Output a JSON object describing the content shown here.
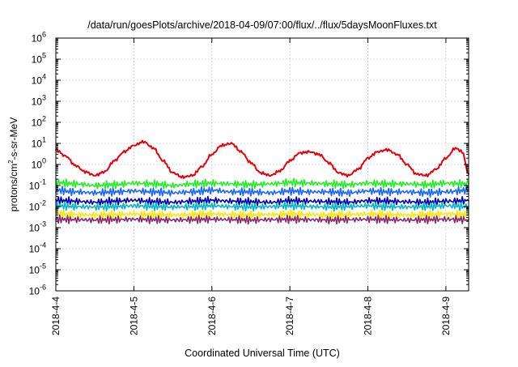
{
  "chart_data": {
    "type": "line",
    "title": "/data/run/goesPlots/archive/2018-04-09/07:00/flux/../flux/5daysMoonFluxes.txt",
    "xlabel": "Coordinated Universal Time (UTC)",
    "ylabel_parts": [
      "protons/cm",
      "2",
      "-s-sr-MeV"
    ],
    "y_scale": "log",
    "ylim": [
      1e-06,
      1000000.0
    ],
    "y_ticks": [
      {
        "base": "10",
        "exp": "-6",
        "value": 1e-06
      },
      {
        "base": "10",
        "exp": "-5",
        "value": 1e-05
      },
      {
        "base": "10",
        "exp": "-4",
        "value": 0.0001
      },
      {
        "base": "10",
        "exp": "-3",
        "value": 0.001
      },
      {
        "base": "10",
        "exp": "-2",
        "value": 0.01
      },
      {
        "base": "10",
        "exp": "-1",
        "value": 0.1
      },
      {
        "base": "10",
        "exp": "0",
        "value": 1
      },
      {
        "base": "10",
        "exp": "1",
        "value": 10
      },
      {
        "base": "10",
        "exp": "2",
        "value": 100
      },
      {
        "base": "10",
        "exp": "3",
        "value": 1000
      },
      {
        "base": "10",
        "exp": "4",
        "value": 10000
      },
      {
        "base": "10",
        "exp": "5",
        "value": 100000
      },
      {
        "base": "10",
        "exp": "6",
        "value": 1000000
      }
    ],
    "xlim": [
      "2018-04-04T00:00",
      "2018-04-09T07:00"
    ],
    "x_ticks": [
      "2018-4-4",
      "2018-4-5",
      "2018-4-6",
      "2018-4-7",
      "2018-4-8",
      "2018-4-9"
    ],
    "grid": true,
    "series": [
      {
        "color": "#e8000b",
        "x": [
          "2018-04-04T00:00",
          "2018-04-04T03:00",
          "2018-04-04T06:00",
          "2018-04-04T09:00",
          "2018-04-04T12:00",
          "2018-04-04T15:00",
          "2018-04-04T18:00",
          "2018-04-04T21:00",
          "2018-04-05T00:00",
          "2018-04-05T03:00",
          "2018-04-05T06:00",
          "2018-04-05T09:00",
          "2018-04-05T12:00",
          "2018-04-05T15:00",
          "2018-04-05T18:00",
          "2018-04-05T21:00",
          "2018-04-06T00:00",
          "2018-04-06T03:00",
          "2018-04-06T06:00",
          "2018-04-06T09:00",
          "2018-04-06T12:00",
          "2018-04-06T15:00",
          "2018-04-06T18:00",
          "2018-04-06T21:00",
          "2018-04-07T00:00",
          "2018-04-07T03:00",
          "2018-04-07T06:00",
          "2018-04-07T09:00",
          "2018-04-07T12:00",
          "2018-04-07T15:00",
          "2018-04-07T18:00",
          "2018-04-07T21:00",
          "2018-04-08T00:00",
          "2018-04-08T03:00",
          "2018-04-08T06:00",
          "2018-04-08T09:00",
          "2018-04-08T12:00",
          "2018-04-08T15:00",
          "2018-04-08T18:00",
          "2018-04-08T21:00",
          "2018-04-09T00:00",
          "2018-04-09T03:00",
          "2018-04-09T05:00",
          "2018-04-09T07:00"
        ],
        "values": [
          5,
          2.5,
          0.9,
          0.45,
          0.3,
          0.45,
          1.5,
          4,
          8,
          12,
          6,
          1.5,
          0.4,
          0.25,
          0.3,
          0.8,
          3,
          8,
          10,
          4,
          1.2,
          0.4,
          0.3,
          0.5,
          1.5,
          3.5,
          4,
          3,
          1.2,
          0.4,
          0.3,
          0.6,
          2,
          4,
          5,
          3,
          1,
          0.35,
          0.3,
          0.6,
          2,
          6,
          4,
          0.35
        ]
      },
      {
        "color": "#22ee22",
        "x": [
          "2018-04-04T00:00",
          "2018-04-04T06:00",
          "2018-04-04T12:00",
          "2018-04-04T18:00",
          "2018-04-05T00:00",
          "2018-04-05T06:00",
          "2018-04-05T12:00",
          "2018-04-05T18:00",
          "2018-04-06T00:00",
          "2018-04-06T06:00",
          "2018-04-06T12:00",
          "2018-04-06T18:00",
          "2018-04-07T00:00",
          "2018-04-07T06:00",
          "2018-04-07T12:00",
          "2018-04-07T18:00",
          "2018-04-08T00:00",
          "2018-04-08T06:00",
          "2018-04-08T12:00",
          "2018-04-08T18:00",
          "2018-04-09T00:00",
          "2018-04-09T07:00"
        ],
        "values": [
          0.14,
          0.12,
          0.1,
          0.11,
          0.13,
          0.12,
          0.1,
          0.12,
          0.13,
          0.12,
          0.11,
          0.12,
          0.14,
          0.13,
          0.12,
          0.11,
          0.13,
          0.12,
          0.12,
          0.11,
          0.13,
          0.12
        ]
      },
      {
        "color": "#1a66ff",
        "x": [
          "2018-04-04T00:00",
          "2018-04-04T06:00",
          "2018-04-04T12:00",
          "2018-04-04T18:00",
          "2018-04-05T00:00",
          "2018-04-05T06:00",
          "2018-04-05T12:00",
          "2018-04-05T18:00",
          "2018-04-06T00:00",
          "2018-04-06T06:00",
          "2018-04-06T12:00",
          "2018-04-06T18:00",
          "2018-04-07T00:00",
          "2018-04-07T06:00",
          "2018-04-07T12:00",
          "2018-04-07T18:00",
          "2018-04-08T00:00",
          "2018-04-08T06:00",
          "2018-04-08T12:00",
          "2018-04-08T18:00",
          "2018-04-09T00:00",
          "2018-04-09T07:00"
        ],
        "values": [
          0.06,
          0.05,
          0.045,
          0.05,
          0.055,
          0.05,
          0.045,
          0.05,
          0.06,
          0.05,
          0.05,
          0.045,
          0.055,
          0.05,
          0.05,
          0.045,
          0.055,
          0.05,
          0.05,
          0.045,
          0.05,
          0.06
        ]
      },
      {
        "color": "#0000b8",
        "x": [
          "2018-04-04T00:00",
          "2018-04-04T06:00",
          "2018-04-04T12:00",
          "2018-04-04T18:00",
          "2018-04-05T00:00",
          "2018-04-05T06:00",
          "2018-04-05T12:00",
          "2018-04-05T18:00",
          "2018-04-06T00:00",
          "2018-04-06T06:00",
          "2018-04-06T12:00",
          "2018-04-06T18:00",
          "2018-04-07T00:00",
          "2018-04-07T06:00",
          "2018-04-07T12:00",
          "2018-04-07T18:00",
          "2018-04-08T00:00",
          "2018-04-08T06:00",
          "2018-04-08T12:00",
          "2018-04-08T18:00",
          "2018-04-09T00:00",
          "2018-04-09T07:00"
        ],
        "values": [
          0.02,
          0.018,
          0.016,
          0.018,
          0.02,
          0.017,
          0.016,
          0.018,
          0.02,
          0.018,
          0.017,
          0.016,
          0.019,
          0.018,
          0.017,
          0.016,
          0.019,
          0.018,
          0.017,
          0.016,
          0.018,
          0.019
        ]
      },
      {
        "color": "#00b8c8",
        "x": [
          "2018-04-04T00:00",
          "2018-04-04T06:00",
          "2018-04-04T12:00",
          "2018-04-04T18:00",
          "2018-04-05T00:00",
          "2018-04-05T06:00",
          "2018-04-05T12:00",
          "2018-04-05T18:00",
          "2018-04-06T00:00",
          "2018-04-06T06:00",
          "2018-04-06T12:00",
          "2018-04-06T18:00",
          "2018-04-07T00:00",
          "2018-04-07T06:00",
          "2018-04-07T12:00",
          "2018-04-07T18:00",
          "2018-04-08T00:00",
          "2018-04-08T06:00",
          "2018-04-08T12:00",
          "2018-04-08T18:00",
          "2018-04-09T00:00",
          "2018-04-09T07:00"
        ],
        "values": [
          0.011,
          0.01,
          0.0095,
          0.01,
          0.011,
          0.01,
          0.0095,
          0.01,
          0.011,
          0.01,
          0.0095,
          0.01,
          0.011,
          0.01,
          0.0095,
          0.01,
          0.011,
          0.01,
          0.0095,
          0.01,
          0.011,
          0.01
        ]
      },
      {
        "color": "#ffe600",
        "x": [
          "2018-04-04T00:00",
          "2018-04-04T06:00",
          "2018-04-04T12:00",
          "2018-04-04T18:00",
          "2018-04-05T00:00",
          "2018-04-05T06:00",
          "2018-04-05T12:00",
          "2018-04-05T18:00",
          "2018-04-06T00:00",
          "2018-04-06T06:00",
          "2018-04-06T12:00",
          "2018-04-06T18:00",
          "2018-04-07T00:00",
          "2018-04-07T06:00",
          "2018-04-07T12:00",
          "2018-04-07T18:00",
          "2018-04-08T00:00",
          "2018-04-08T06:00",
          "2018-04-08T12:00",
          "2018-04-08T18:00",
          "2018-04-09T00:00",
          "2018-04-09T07:00"
        ],
        "values": [
          0.0045,
          0.0042,
          0.004,
          0.0042,
          0.0045,
          0.0042,
          0.004,
          0.0042,
          0.0045,
          0.0042,
          0.004,
          0.0042,
          0.0045,
          0.0042,
          0.004,
          0.0042,
          0.0045,
          0.0042,
          0.004,
          0.0042,
          0.0045,
          0.0042
        ]
      },
      {
        "color": "#8b2a6a",
        "x": [
          "2018-04-04T00:00",
          "2018-04-04T06:00",
          "2018-04-04T12:00",
          "2018-04-04T18:00",
          "2018-04-05T00:00",
          "2018-04-05T06:00",
          "2018-04-05T12:00",
          "2018-04-05T18:00",
          "2018-04-06T00:00",
          "2018-04-06T06:00",
          "2018-04-06T12:00",
          "2018-04-06T18:00",
          "2018-04-07T00:00",
          "2018-04-07T06:00",
          "2018-04-07T12:00",
          "2018-04-07T18:00",
          "2018-04-08T00:00",
          "2018-04-08T06:00",
          "2018-04-08T12:00",
          "2018-04-08T18:00",
          "2018-04-09T00:00",
          "2018-04-09T07:00"
        ],
        "values": [
          0.0025,
          0.0024,
          0.0023,
          0.0024,
          0.0025,
          0.0024,
          0.0023,
          0.0024,
          0.0025,
          0.0024,
          0.0023,
          0.0024,
          0.0025,
          0.0024,
          0.0023,
          0.0024,
          0.0025,
          0.0024,
          0.0023,
          0.0024,
          0.0025,
          0.0024
        ]
      }
    ]
  }
}
